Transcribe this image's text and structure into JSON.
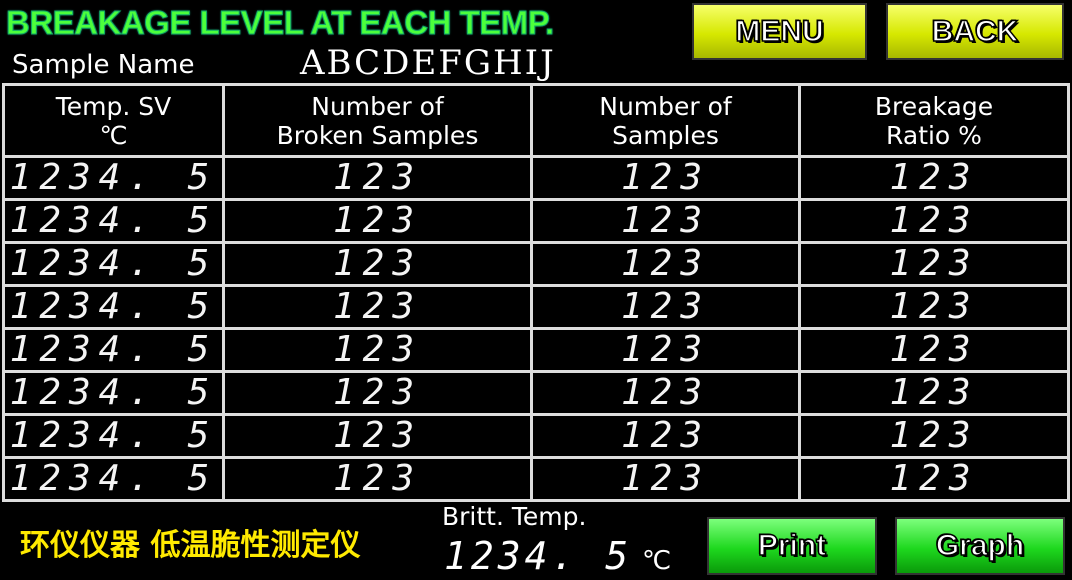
{
  "header": {
    "title": "BREAKAGE LEVEL AT EACH TEMP.",
    "menu_label": "MENU",
    "back_label": "BACK"
  },
  "sample": {
    "label": "Sample Name",
    "value": "ABCDEFGHIJ"
  },
  "table": {
    "columns": [
      "Temp. SV\n℃",
      "Number of\nBroken Samples",
      "Number of\nSamples",
      "Breakage\nRatio  %"
    ],
    "rows": [
      [
        "1234. 5",
        "123",
        "123",
        "123"
      ],
      [
        "1234. 5",
        "123",
        "123",
        "123"
      ],
      [
        "1234. 5",
        "123",
        "123",
        "123"
      ],
      [
        "1234. 5",
        "123",
        "123",
        "123"
      ],
      [
        "1234. 5",
        "123",
        "123",
        "123"
      ],
      [
        "1234. 5",
        "123",
        "123",
        "123"
      ],
      [
        "1234. 5",
        "123",
        "123",
        "123"
      ],
      [
        "1234. 5",
        "123",
        "123",
        "123"
      ]
    ]
  },
  "footer": {
    "britt_label": "Britt. Temp.",
    "britt_value": "1234. 5",
    "britt_unit": "℃",
    "print_label": "Print",
    "graph_label": "Graph"
  },
  "watermark": "环仪仪器 低温脆性测定仪",
  "colors": {
    "title": "#4cff3c",
    "menu_buttons": "#e0f000",
    "action_buttons": "#1ed81e",
    "watermark": "#ffea00"
  }
}
